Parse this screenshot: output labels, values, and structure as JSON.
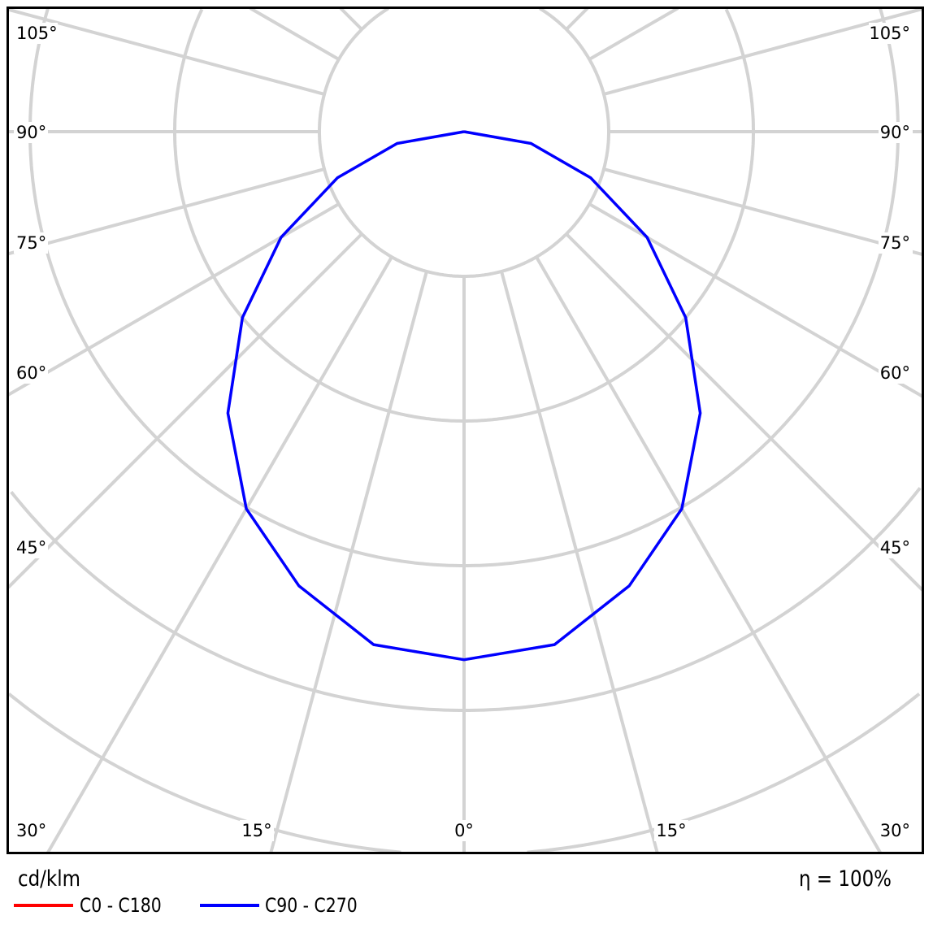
{
  "chart_data": {
    "type": "polar",
    "unit_label": "cd/klm",
    "efficiency_label": "η = 100%",
    "angle_labels_left": [
      "105°",
      "90°",
      "75°",
      "60°",
      "45°",
      "30°"
    ],
    "angle_labels_bottom": [
      "30°",
      "15°",
      "0°",
      "15°",
      "30°"
    ],
    "angle_labels_right": [
      "105°",
      "90°",
      "75°",
      "60°",
      "45°",
      "30°"
    ],
    "angles_deg": [
      0,
      10,
      20,
      30,
      40,
      50,
      60,
      70,
      80,
      90
    ],
    "series": [
      {
        "name": "C0 - C180",
        "color": "#ff0000",
        "values": [
          365,
          360,
          334,
          301,
          254,
          200,
          146,
          93,
          47,
          0
        ]
      },
      {
        "name": "C90 - C270",
        "color": "#0000ff",
        "values": [
          365,
          360,
          334,
          301,
          254,
          200,
          146,
          93,
          47,
          0
        ]
      }
    ],
    "grid": true,
    "legend_position": "bottom-left"
  }
}
